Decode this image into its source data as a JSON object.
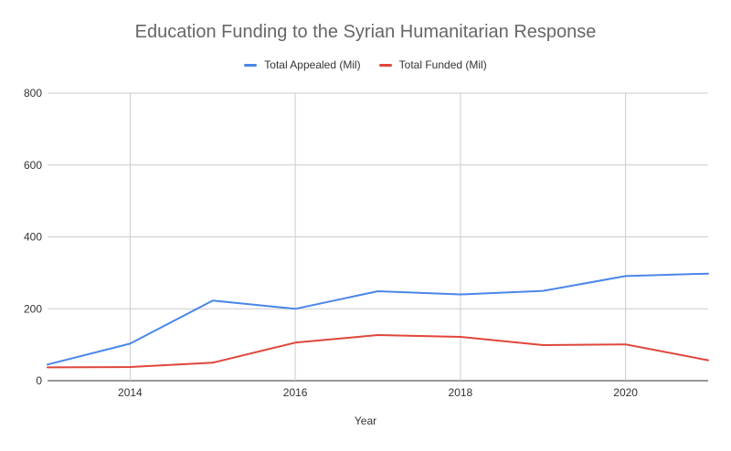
{
  "chart_data": {
    "type": "line",
    "title": "Education Funding to the Syrian Humanitarian Response",
    "xlabel": "Year",
    "ylabel": "",
    "x": [
      2013,
      2014,
      2015,
      2016,
      2017,
      2018,
      2019,
      2020,
      2021
    ],
    "xlim": [
      2013,
      2021
    ],
    "ylim": [
      0,
      800
    ],
    "x_ticks": [
      "2014",
      "2016",
      "2018",
      "2020"
    ],
    "y_ticks": [
      "0",
      "200",
      "400",
      "600",
      "800"
    ],
    "grid": true,
    "legend_position": "top",
    "series": [
      {
        "name": "Total Appealed (Mil)",
        "color": "#4a86e8",
        "values": [
          45,
          103,
          223,
          200,
          249,
          240,
          250,
          291,
          298
        ]
      },
      {
        "name": "Total Funded (Mil)",
        "color": "#e0463a",
        "values": [
          37,
          38,
          50,
          106,
          127,
          122,
          99,
          101,
          57
        ]
      }
    ]
  }
}
